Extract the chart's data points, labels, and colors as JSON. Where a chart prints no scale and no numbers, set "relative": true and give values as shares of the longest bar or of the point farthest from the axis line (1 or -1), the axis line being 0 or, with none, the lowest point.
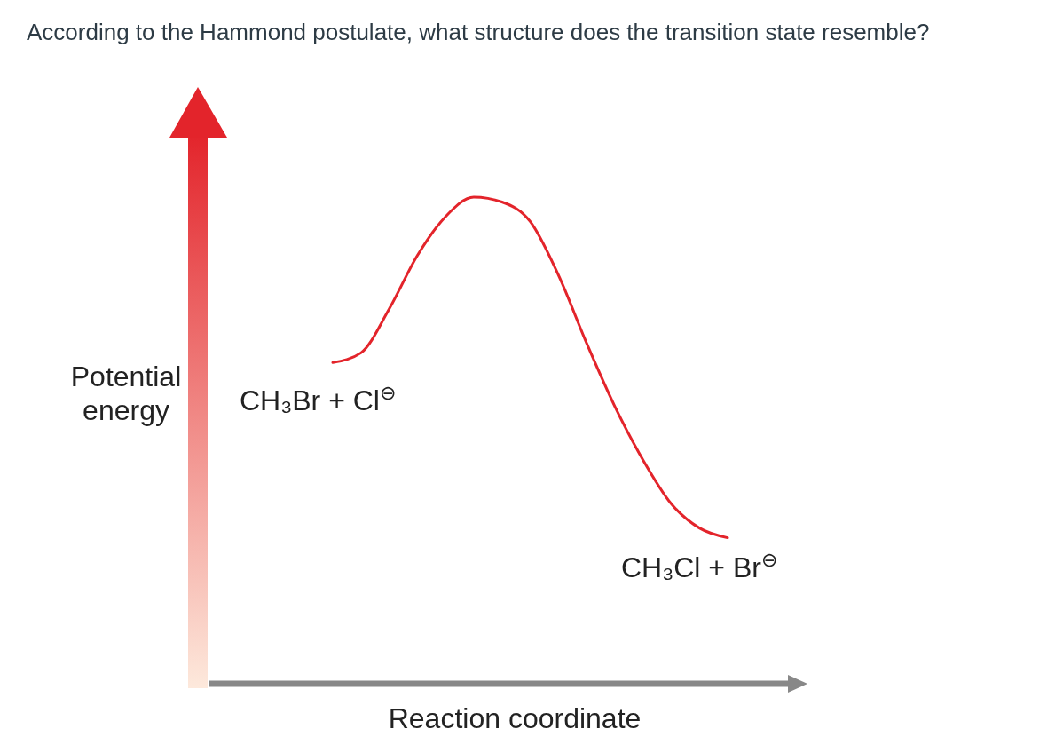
{
  "chart_data": {
    "type": "line",
    "title": "According to the Hammond postulate, what structure does the transition state resemble?",
    "ylabel": "Potential energy",
    "xlabel": "Reaction coordinate",
    "relative": true,
    "categories": [
      null,
      null,
      null,
      null,
      null,
      null,
      null,
      null,
      null,
      null,
      null,
      null,
      null,
      null,
      null
    ],
    "series": [
      {
        "color": "#e3242b",
        "values": [
          0.66,
          0.68,
          0.77,
          0.88,
          0.96,
          1.0,
          0.99,
          0.95,
          0.84,
          0.7,
          0.57,
          0.46,
          0.37,
          0.32,
          0.3
        ]
      }
    ],
    "annotations": [
      "CH₃Br + Cl$^{⊖}$",
      "CH₃Cl + Br$^{⊖}$"
    ]
  }
}
